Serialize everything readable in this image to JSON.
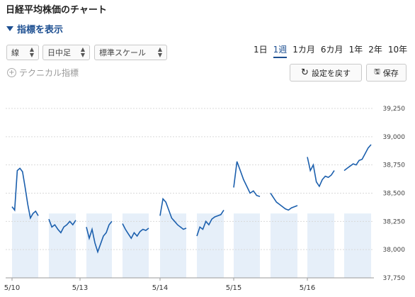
{
  "header": {
    "title": "日経平均株価のチャート",
    "toggle_label": "指標を表示"
  },
  "controls": {
    "chart_type": "線",
    "interval": "日中足",
    "scale": "標準スケール",
    "technical_label": "テクニカル指標",
    "reset_label": "設定を戻す",
    "save_label": "保存"
  },
  "ranges": [
    "1日",
    "1週",
    "1カ月",
    "6カ月",
    "1年",
    "2年",
    "10年"
  ],
  "active_range": "1週",
  "icons": [
    "chevron-down-icon",
    "plus-circle-icon",
    "reset-icon",
    "save-icon"
  ],
  "colors": {
    "line": "#1b5fad",
    "band": "#e6eff9",
    "accent": "#1d4f91"
  },
  "chart_data": {
    "type": "line",
    "xlabel": "",
    "ylabel": "",
    "y_ticks": [
      37750,
      38000,
      38250,
      38500,
      38750,
      39000,
      39250
    ],
    "x_ticks": [
      "5/10",
      "5/13",
      "5/14",
      "5/15",
      "5/16"
    ],
    "ylim": [
      37750,
      39250
    ],
    "grid": true,
    "series": [
      {
        "values": [
          38380,
          38350,
          38700,
          38720,
          38690,
          38550,
          38400,
          38280,
          38320,
          38340,
          38300
        ]
      },
      {
        "values": [
          38270,
          38200,
          38220,
          38180,
          38150,
          38200,
          38220,
          38250,
          38220,
          38260
        ]
      },
      {
        "values": [
          38200,
          38100,
          38180,
          38060,
          37980,
          38050,
          38120,
          38150,
          38220,
          38250
        ]
      },
      {
        "values": [
          38230,
          38180,
          38140,
          38100,
          38150,
          38120,
          38160,
          38180,
          38170,
          38190
        ]
      },
      {
        "values": [
          38300,
          38450,
          38420,
          38350,
          38280,
          38250,
          38220,
          38200,
          38180,
          38190
        ]
      },
      {
        "values": [
          38120,
          38200,
          38180,
          38250,
          38220,
          38270,
          38290,
          38300,
          38310,
          38350
        ]
      },
      {
        "values": [
          38550,
          38780,
          38700,
          38620,
          38560,
          38500,
          38520,
          38480,
          38470
        ]
      },
      {
        "values": [
          38500,
          38460,
          38420,
          38400,
          38380,
          38360,
          38350,
          38370,
          38380,
          38390
        ]
      },
      {
        "values": [
          38820,
          38700,
          38750,
          38600,
          38560,
          38620,
          38650,
          38640,
          38660,
          38700
        ]
      },
      {
        "values": [
          38700,
          38720,
          38740,
          38760,
          38750,
          38790,
          38800,
          38850,
          38900,
          38930
        ]
      }
    ]
  }
}
